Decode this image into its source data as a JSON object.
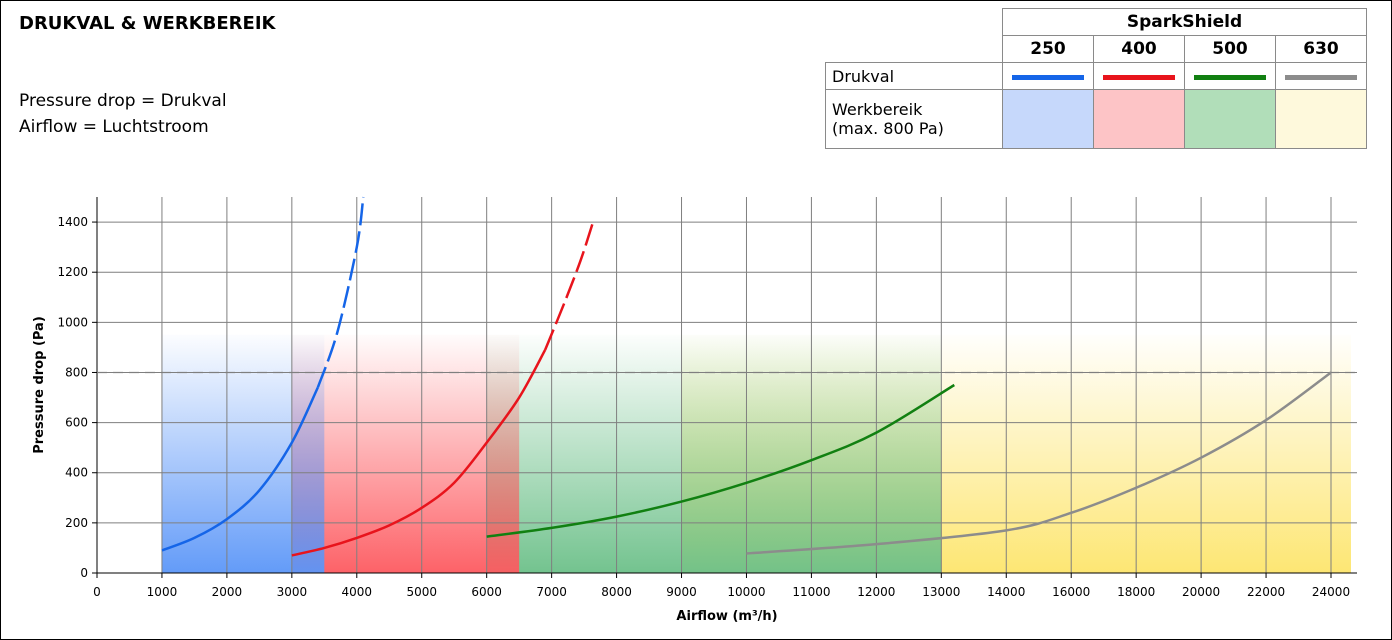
{
  "title": "DRUKVAL & WERKBEREIK",
  "notes": [
    "Pressure drop = Drukval",
    "Airflow = Luchtstroom"
  ],
  "legend": {
    "header": "SparkShield",
    "sizes": [
      "250",
      "400",
      "500",
      "630"
    ],
    "row_drukval": "Drukval",
    "row_werkbereik_1": "Werkbereik",
    "row_werkbereik_2": "(max. 800 Pa)",
    "line_colors": [
      "#1565e8",
      "#e8141c",
      "#118011",
      "#8c8c8c"
    ],
    "box_colors": [
      "#c6d8fb",
      "#fdc4c6",
      "#b1deb9",
      "#fef9dc"
    ]
  },
  "chart_data": {
    "type": "line",
    "xlabel": "Airflow (m³/h)",
    "ylabel": "Pressure drop (Pa)",
    "ylim": [
      0,
      1500
    ],
    "x_ticks": [
      0,
      1000,
      2000,
      3000,
      4000,
      5000,
      6000,
      7000,
      8000,
      9000,
      10000,
      11000,
      12000,
      13000,
      14000,
      16000,
      18000,
      20000,
      22000,
      24000
    ],
    "y_ticks": [
      0,
      200,
      400,
      600,
      800,
      1000,
      1200,
      1400
    ],
    "grid": true,
    "reference_line": {
      "y": 800,
      "style": "dashed"
    },
    "working_ranges": [
      {
        "series": "250",
        "x": [
          1000,
          3500
        ],
        "color": "#5b96f8"
      },
      {
        "series": "400",
        "x": [
          3000,
          6500
        ],
        "color": "#fd5a60"
      },
      {
        "series": "500",
        "x": [
          6000,
          13000
        ],
        "color": "#6cc089"
      },
      {
        "series": "630",
        "x": [
          9000,
          24000
        ],
        "color": "#fde56c"
      }
    ],
    "series": [
      {
        "name": "250",
        "color": "#1565e8",
        "solid": [
          [
            1000,
            90
          ],
          [
            1500,
            140
          ],
          [
            2000,
            215
          ],
          [
            2500,
            330
          ],
          [
            3000,
            520
          ],
          [
            3400,
            740
          ]
        ],
        "dashed": [
          [
            3400,
            740
          ],
          [
            3700,
            960
          ],
          [
            4000,
            1300
          ],
          [
            4100,
            1500
          ]
        ]
      },
      {
        "name": "400",
        "color": "#e8141c",
        "solid": [
          [
            3000,
            70
          ],
          [
            3500,
            100
          ],
          [
            4000,
            140
          ],
          [
            4500,
            190
          ],
          [
            5000,
            260
          ],
          [
            5500,
            360
          ],
          [
            6000,
            520
          ],
          [
            6500,
            700
          ],
          [
            6900,
            890
          ]
        ],
        "dashed": [
          [
            6900,
            890
          ],
          [
            7200,
            1080
          ],
          [
            7450,
            1250
          ],
          [
            7650,
            1410
          ]
        ]
      },
      {
        "name": "500",
        "color": "#118011",
        "solid": [
          [
            6000,
            145
          ],
          [
            7000,
            180
          ],
          [
            8000,
            225
          ],
          [
            9000,
            285
          ],
          [
            10000,
            360
          ],
          [
            11000,
            450
          ],
          [
            12000,
            560
          ],
          [
            13200,
            750
          ]
        ],
        "dashed": []
      },
      {
        "name": "630",
        "color": "#8c8c8c",
        "solid": [
          [
            10000,
            78
          ],
          [
            12000,
            115
          ],
          [
            14000,
            170
          ],
          [
            16000,
            240
          ],
          [
            18000,
            340
          ],
          [
            20000,
            460
          ],
          [
            22000,
            610
          ],
          [
            24000,
            800
          ]
        ],
        "dashed": []
      }
    ]
  }
}
